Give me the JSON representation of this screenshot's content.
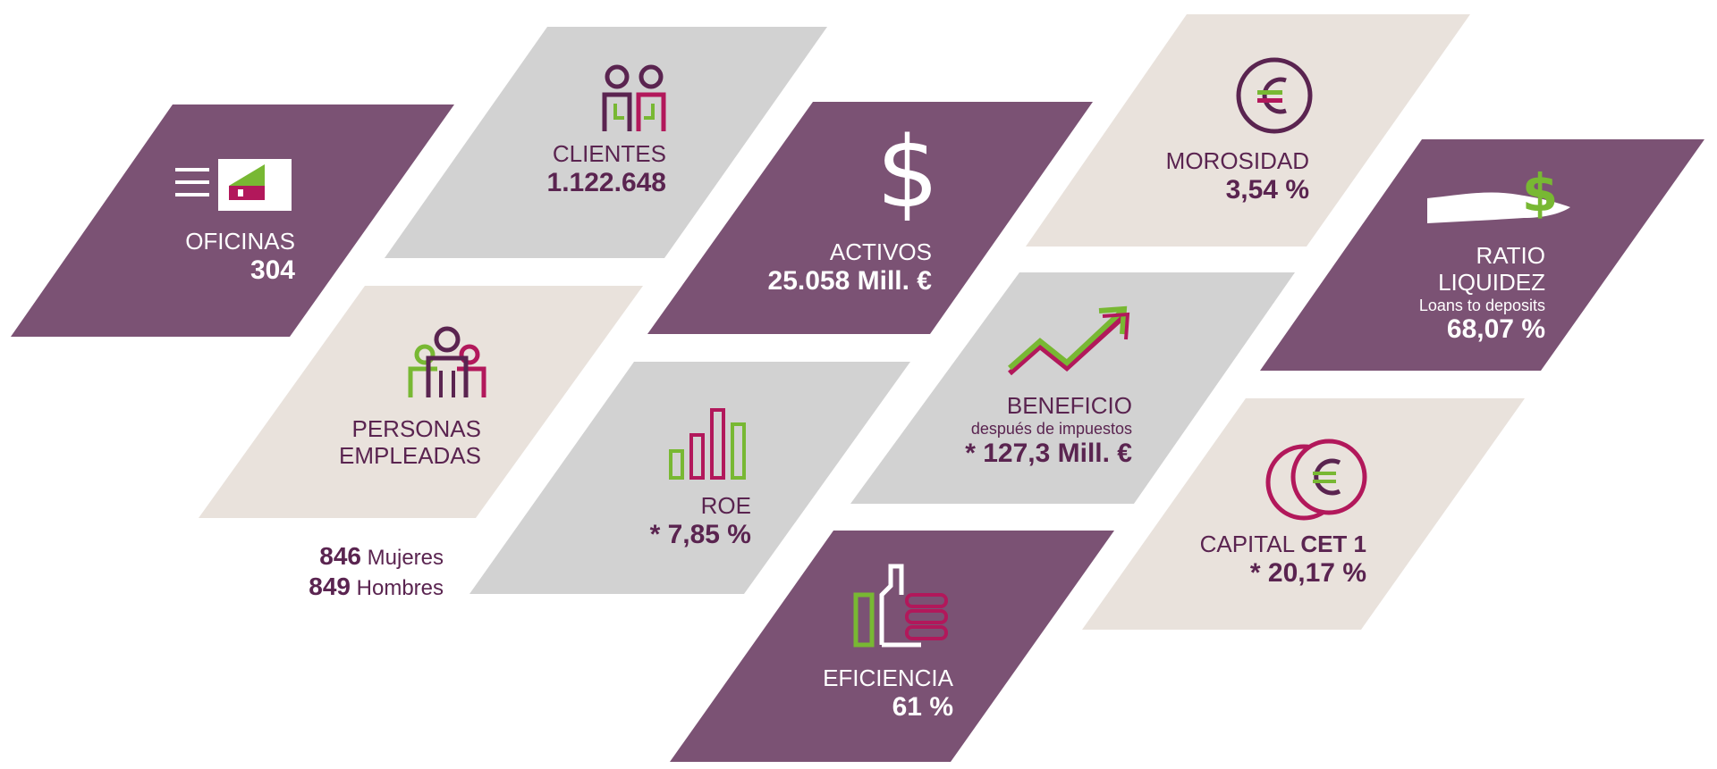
{
  "colors": {
    "purple": "#7b5274",
    "grey": "#d2d2d2",
    "beige": "#e9e2dc",
    "text_dark": "#5a2450",
    "green": "#78b833",
    "magenta": "#b2185b"
  },
  "tiles": {
    "oficinas": {
      "label": "OFICINAS",
      "value": "304",
      "icon": "office-door-icon"
    },
    "clientes": {
      "label": "CLIENTES",
      "value": "1.122.648",
      "icon": "clients-icon"
    },
    "activos": {
      "label": "ACTIVOS",
      "value": "25.058 Mill. €",
      "icon": "dollar-icon"
    },
    "morosidad": {
      "label": "MOROSIDAD",
      "value": "3,54 %",
      "icon": "euro-circle-icon"
    },
    "ratio": {
      "label_1": "RATIO",
      "label_2": "LIQUIDEZ",
      "sublabel": "Loans to deposits",
      "value": "68,07 %",
      "icon": "hand-dollar-icon"
    },
    "personas": {
      "label_1": "PERSONAS",
      "label_2": "EMPLEADAS",
      "icon": "people-group-icon"
    },
    "roe": {
      "label": "ROE",
      "value": "* 7,85 %",
      "icon": "bar-chart-icon"
    },
    "beneficio": {
      "label": "BENEFICIO",
      "sublabel": "después de impuestos",
      "value": "* 127,3 Mill. €",
      "icon": "trend-up-arrow-icon"
    },
    "capital": {
      "label": "CAPITAL",
      "label_bold": "CET 1",
      "value": "* 20,17 %",
      "icon": "coins-euro-icon"
    },
    "eficiencia": {
      "label": "EFICIENCIA",
      "value": "61 %",
      "icon": "thumbs-up-icon"
    }
  },
  "employees": {
    "women_count": "846",
    "women_label": "Mujeres",
    "men_count": "849",
    "men_label": "Hombres"
  }
}
